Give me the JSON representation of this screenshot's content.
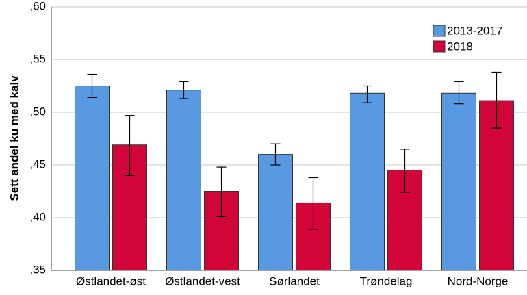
{
  "chart_data": {
    "type": "bar",
    "y_label": "Sett andel ku med kalv",
    "categories": [
      "Østlandet-øst",
      "Østlandet-vest",
      "Sørlandet",
      "Trøndelag",
      "Nord-Norge"
    ],
    "series": [
      {
        "name": "2013-2017",
        "color": "#5899e2",
        "values": [
          0.525,
          0.521,
          0.46,
          0.518,
          0.518
        ],
        "lower": [
          0.514,
          0.513,
          0.45,
          0.509,
          0.508
        ],
        "upper": [
          0.536,
          0.529,
          0.47,
          0.525,
          0.529
        ]
      },
      {
        "name": "2018",
        "color": "#d10537",
        "values": [
          0.469,
          0.425,
          0.414,
          0.445,
          0.511
        ],
        "lower": [
          0.44,
          0.401,
          0.389,
          0.424,
          0.485
        ],
        "upper": [
          0.497,
          0.448,
          0.438,
          0.465,
          0.538
        ]
      }
    ],
    "ylim": [
      0.35,
      0.6
    ],
    "yticks": [
      {
        "value": 0.35,
        "label": ",35"
      },
      {
        "value": 0.4,
        "label": ",40"
      },
      {
        "value": 0.45,
        "label": ",45"
      },
      {
        "value": 0.5,
        "label": ",50"
      },
      {
        "value": 0.55,
        "label": ",55"
      },
      {
        "value": 0.6,
        "label": ",60"
      }
    ],
    "grid": true,
    "legend": "top-right"
  }
}
